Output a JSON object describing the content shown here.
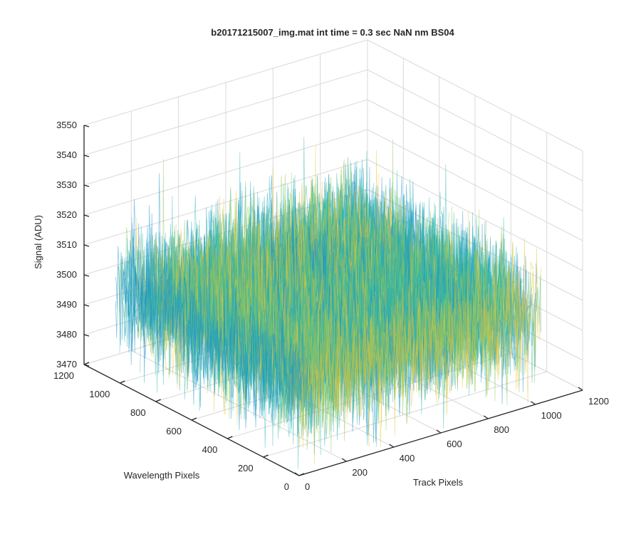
{
  "chart_data": {
    "type": "surface",
    "title": "b20171215007_img.mat int time = 0.3 sec  NaN nm BS04",
    "xlabel": "Track Pixels",
    "ylabel": "Wavelength Pixels",
    "zlabel": "Signal (ADU)",
    "xlim": [
      0,
      1200
    ],
    "ylim": [
      0,
      1200
    ],
    "zlim": [
      3470,
      3550
    ],
    "xticks": [
      "0",
      "200",
      "400",
      "600",
      "800",
      "1000",
      "1200"
    ],
    "yticks": [
      "0",
      "200",
      "400",
      "600",
      "800",
      "1000",
      "1200"
    ],
    "zticks": [
      "3470",
      "3480",
      "3490",
      "3500",
      "3510",
      "3520",
      "3530",
      "3540",
      "3550"
    ],
    "grid": true,
    "colormap": "parula",
    "data_extent": {
      "x": [
        0,
        1024
      ],
      "y": [
        0,
        1024
      ]
    },
    "signal_mean": 3500,
    "signal_range_typical": [
      3480,
      3525
    ],
    "colors": {
      "dark": "#1a8fc8",
      "mid": "#2ab5b0",
      "green": "#8cc858",
      "yellow": "#e8c43a"
    }
  }
}
